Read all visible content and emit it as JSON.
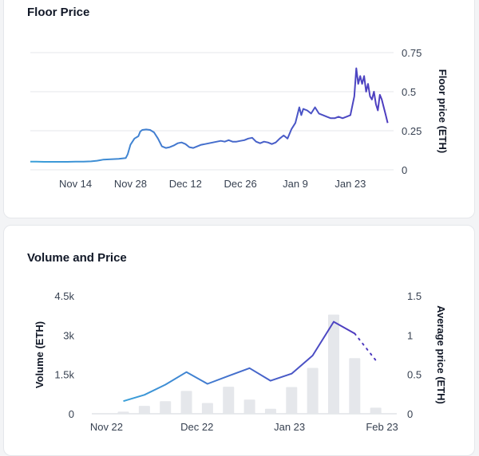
{
  "floor_card": {
    "title": "Floor Price",
    "chart_data": {
      "type": "line",
      "title": "Floor Price",
      "ylabel": "Floor price (ETH)",
      "y_ticks": [
        "0",
        "0.25",
        "0.5",
        "0.75"
      ],
      "ylim": [
        0,
        0.75
      ],
      "x_ticks": [
        "Nov 14",
        "Nov 28",
        "Dec 12",
        "Dec 26",
        "Jan 9",
        "Jan 23"
      ],
      "x_tick_index": [
        0,
        14,
        28,
        42,
        56,
        70
      ],
      "x_range": [
        -11.5,
        81
      ],
      "grid": true,
      "color_start": "#3aa0d9",
      "color_end": "#4f3bbf",
      "series": [
        {
          "x": [
            -11.5,
            -10,
            -8,
            -6,
            -4,
            -2,
            0,
            2,
            4,
            5.5,
            7,
            9,
            11,
            12.8,
            13.3,
            14,
            15,
            16,
            16.5,
            17,
            18,
            19,
            20,
            21,
            22,
            23,
            24,
            25,
            26,
            27,
            28,
            29,
            30,
            31,
            32,
            33,
            34,
            35,
            36,
            37,
            38,
            39,
            40,
            41,
            42,
            43,
            44,
            45,
            46,
            47,
            48,
            49,
            50,
            51,
            52,
            53,
            54,
            55,
            56,
            57,
            57.5,
            58,
            59,
            60,
            61,
            62,
            63,
            64,
            65,
            66,
            67,
            68,
            69,
            70,
            71,
            71.5,
            72,
            72.5,
            73,
            73.5,
            74,
            74.5,
            75,
            75.5,
            76,
            76.5,
            77,
            77.5,
            78,
            78.5,
            79,
            79.5
          ],
          "y": [
            0.052,
            0.052,
            0.051,
            0.051,
            0.051,
            0.051,
            0.052,
            0.052,
            0.054,
            0.058,
            0.065,
            0.068,
            0.07,
            0.075,
            0.1,
            0.16,
            0.2,
            0.215,
            0.245,
            0.255,
            0.258,
            0.255,
            0.24,
            0.2,
            0.15,
            0.14,
            0.145,
            0.155,
            0.17,
            0.175,
            0.165,
            0.145,
            0.14,
            0.15,
            0.16,
            0.165,
            0.17,
            0.175,
            0.18,
            0.185,
            0.18,
            0.19,
            0.18,
            0.18,
            0.185,
            0.19,
            0.2,
            0.205,
            0.18,
            0.17,
            0.18,
            0.175,
            0.165,
            0.175,
            0.2,
            0.22,
            0.2,
            0.26,
            0.3,
            0.4,
            0.35,
            0.39,
            0.38,
            0.36,
            0.4,
            0.36,
            0.35,
            0.34,
            0.33,
            0.33,
            0.34,
            0.33,
            0.34,
            0.35,
            0.47,
            0.65,
            0.55,
            0.6,
            0.55,
            0.6,
            0.5,
            0.55,
            0.47,
            0.45,
            0.5,
            0.42,
            0.38,
            0.48,
            0.45,
            0.4,
            0.35,
            0.3
          ]
        }
      ]
    }
  },
  "volume_card": {
    "title": "Volume and Price",
    "chart_data": {
      "type": "bar",
      "ylabel": "Volume (ETH)",
      "y2label": "Average price (ETH)",
      "y_ticks": [
        "0",
        "1.5k",
        "3k",
        "4.5k"
      ],
      "ylim": [
        0,
        4500
      ],
      "y2_ticks": [
        "0",
        "0.5",
        "1",
        "1.5"
      ],
      "y2lim": [
        0,
        1.5
      ],
      "x_ticks": [
        "Nov 22",
        "Dec 22",
        "Jan 23",
        "Feb 23"
      ],
      "x_tick_pos": [
        0,
        4.3,
        8.7,
        13.1
      ],
      "x_range": [
        -0.7,
        13.8
      ],
      "bar_color": "#e5e7eb",
      "line_color_start": "#3aa0d9",
      "line_color_end": "#4f3bbf",
      "bars": {
        "x": [
          0.8,
          1.8,
          2.8,
          3.8,
          4.8,
          5.8,
          6.8,
          7.8,
          8.8,
          9.8,
          10.8,
          11.8,
          12.8
        ],
        "values": [
          80,
          300,
          480,
          870,
          410,
          1030,
          540,
          190,
          1020,
          1750,
          3780,
          2120,
          230
        ]
      },
      "line": {
        "x": [
          0.8,
          1.8,
          2.8,
          3.8,
          4.8,
          5.8,
          6.8,
          7.8,
          8.8,
          9.8,
          10.8,
          11.8
        ],
        "values": [
          0.16,
          0.24,
          0.37,
          0.53,
          0.38,
          0.48,
          0.58,
          0.42,
          0.51,
          0.74,
          1.17,
          1.02
        ]
      },
      "line_projected": {
        "x": [
          11.8,
          12.8
        ],
        "values": [
          1.02,
          0.68
        ]
      }
    }
  }
}
